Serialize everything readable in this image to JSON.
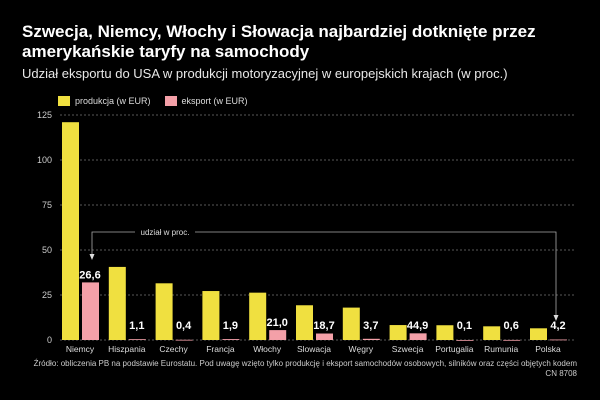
{
  "title": "Szwecja, Niemcy, Włochy i Słowacja najbardziej dotknięte przez amerykańskie taryfy na samochody",
  "subtitle": "Udział eksportu do USA w produkcji motoryzacyjnej w europejskich krajach (w proc.)",
  "footer": "Źródło: obliczenia PB na podstawie Eurostatu. Pod uwagę wzięto tylko produkcję i eksport samochodów osobowych, silników oraz części objętych kodem CN 8708",
  "annotation": "udział w proc.",
  "colors": {
    "production": "#f0e040",
    "export": "#f4a0a8",
    "background": "#000000"
  },
  "chart_data": {
    "type": "bar",
    "categories": [
      "Niemcy",
      "Hiszpania",
      "Czechy",
      "Francja",
      "Włochy",
      "Slowacja",
      "Węgry",
      "Szwecja",
      "Portugalia",
      "Rumunia",
      "Polska"
    ],
    "series": [
      {
        "name": "produkcja (w EUR)",
        "values": [
          121,
          40.6,
          31.5,
          27.2,
          26.3,
          19.3,
          18,
          8.3,
          8.2,
          7.6,
          6.5
        ]
      },
      {
        "name": "eksport (w EUR)",
        "values": [
          32,
          0.45,
          0.13,
          0.5,
          5.5,
          3.6,
          0.67,
          3.7,
          0.01,
          0.05,
          0.27
        ]
      }
    ],
    "share_labels": [
      "26,6",
      "1,1",
      "0,4",
      "1,9",
      "21,0",
      "18,7",
      "3,7",
      "44,9",
      "0,1",
      "0,6",
      "4,2"
    ],
    "yticks": [
      0,
      25,
      50,
      75,
      100,
      125
    ],
    "ylim": [
      0,
      125
    ],
    "grid": true,
    "legend": "top-left"
  }
}
